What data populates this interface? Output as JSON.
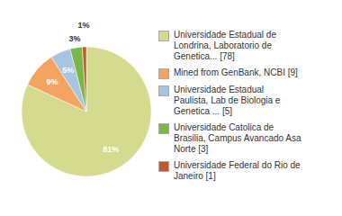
{
  "chart_data": {
    "type": "pie",
    "categories": [
      "Universidade Estadual de\nLondrina, Laboratorio de\nGenetica... [78]",
      "Mined from GenBank, NCBI [9]",
      "Universidade Estadual\nPaulista, Lab de Biologia e\nGenetica ... [5]",
      "Universidade Catolica de\nBrasilia, Campus Avancado Asa\nNorte [3]",
      "Universidade Federal do Rio de\nJaneiro [1]"
    ],
    "values": [
      81,
      9,
      5,
      3,
      1
    ],
    "value_labels": [
      "81%",
      "9%",
      "5%",
      "3%",
      "1%"
    ],
    "colors": [
      "#d4db8e",
      "#f4a460",
      "#a8c4e0",
      "#7ab648",
      "#c05830"
    ],
    "data_labels": true,
    "legend": "right"
  }
}
